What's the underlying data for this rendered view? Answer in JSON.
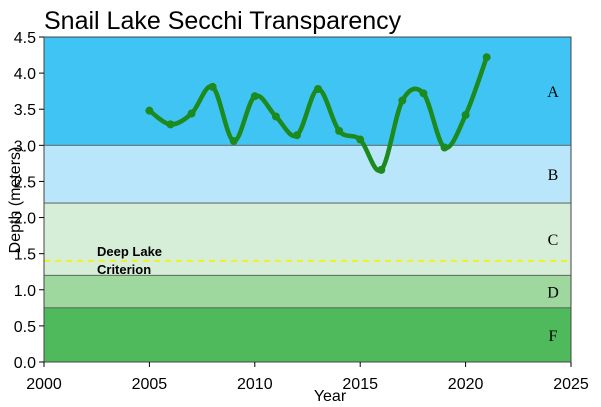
{
  "chart_data": {
    "type": "line",
    "title": "Snail Lake Secchi Transparency",
    "xlabel": "Year",
    "ylabel": "Depth (meters)",
    "xlim": [
      2000,
      2025
    ],
    "ylim": [
      0.0,
      4.5
    ],
    "x_ticks": [
      "2000",
      "2005",
      "2010",
      "2015",
      "2020",
      "2025"
    ],
    "y_ticks": [
      "0.0",
      "0.5",
      "1.0",
      "1.5",
      "2.0",
      "2.5",
      "3.0",
      "3.5",
      "4.0",
      "4.5"
    ],
    "bands": [
      {
        "label": "A",
        "from": 3.0,
        "to": 4.5,
        "color": "#40c4f4"
      },
      {
        "label": "B",
        "from": 2.2,
        "to": 3.0,
        "color": "#b9e6fb"
      },
      {
        "label": "C",
        "from": 1.2,
        "to": 2.2,
        "color": "#d6eed8"
      },
      {
        "label": "D",
        "from": 0.75,
        "to": 1.2,
        "color": "#9ed89f"
      },
      {
        "label": "F",
        "from": 0.0,
        "to": 0.75,
        "color": "#4fba5c"
      }
    ],
    "criterion": {
      "label_line1": "Deep Lake",
      "label_line2": "Criterion",
      "value": 1.4,
      "color": "#f0f020"
    },
    "series": [
      {
        "color": "#1c8a1c",
        "x": [
          2005,
          2006,
          2007,
          2008,
          2009,
          2010,
          2011,
          2012,
          2013,
          2014,
          2015,
          2016,
          2017,
          2018,
          2019,
          2020,
          2021
        ],
        "values": [
          3.48,
          3.29,
          3.44,
          3.81,
          3.06,
          3.68,
          3.4,
          3.14,
          3.78,
          3.2,
          3.08,
          2.66,
          3.62,
          3.72,
          2.97,
          3.42,
          4.22
        ]
      }
    ]
  }
}
